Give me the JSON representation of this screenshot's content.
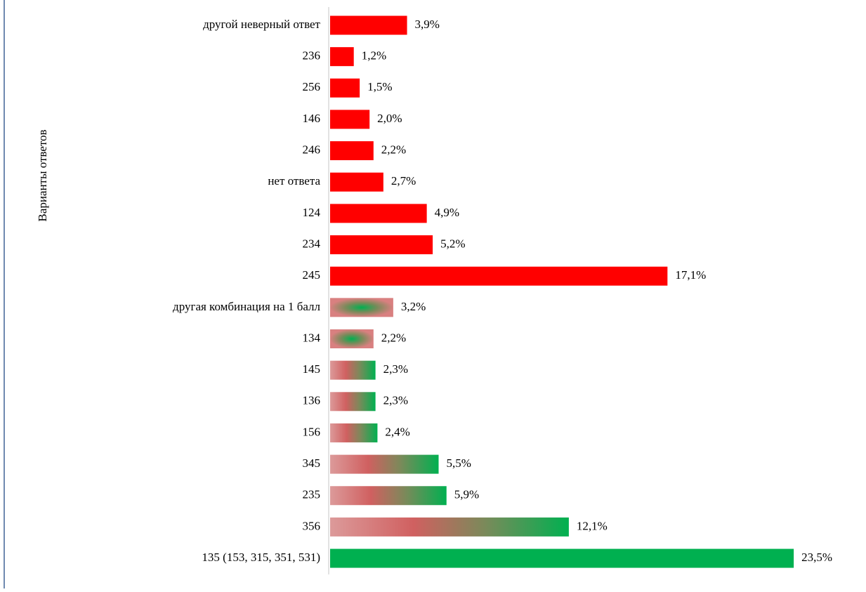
{
  "chart_data": {
    "type": "barh",
    "y_label": "Варианты ответов",
    "categories": [
      "другой неверный ответ",
      "236",
      "256",
      "146",
      "246",
      "нет ответа",
      "124",
      "234",
      "245",
      "другая комбинация на 1 балл",
      "134",
      "145",
      "136",
      "156",
      "345",
      "235",
      "356",
      "135 (153, 315, 351, 531)"
    ],
    "values": [
      3.9,
      1.2,
      1.5,
      2.0,
      2.2,
      2.7,
      4.9,
      5.2,
      17.1,
      3.2,
      2.2,
      2.3,
      2.3,
      2.4,
      5.5,
      5.9,
      12.1,
      23.5
    ],
    "value_labels": [
      "3,9%",
      "1,2%",
      "1,5%",
      "2,0%",
      "2,2%",
      "2,7%",
      "4,9%",
      "5,2%",
      "17,1%",
      "3,2%",
      "2,2%",
      "2,3%",
      "2,3%",
      "2,4%",
      "5,5%",
      "5,9%",
      "12,1%",
      "23,5%"
    ],
    "colors": [
      "#ff0000",
      "#ff0000",
      "#ff0000",
      "#ff0000",
      "#ff0000",
      "#ff0000",
      "#ff0000",
      "#ff0000",
      "#ff0000",
      "radial",
      "radial",
      "gradient",
      "gradient",
      "gradient",
      "gradient",
      "gradient",
      "gradient",
      "#00b050"
    ]
  }
}
